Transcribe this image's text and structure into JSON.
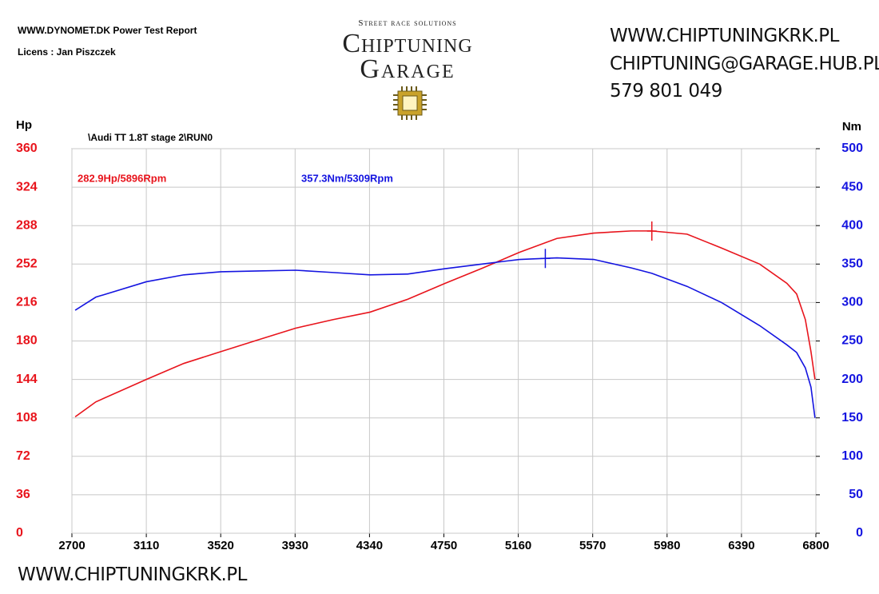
{
  "header": {
    "report": "WWW.DYNOMET.DK  Power Test Report",
    "licence": "Licens :  Jan Piszczek",
    "logo": {
      "tagline": "Street race solutions",
      "line1": "Chiptuning",
      "line2": "Garage"
    },
    "contact": [
      "WWW.CHIPTUNINGKRK.PL",
      "CHIPTUNING@GARAGE.HUB.PL",
      "579 801 049"
    ]
  },
  "footer": "WWW.CHIPTUNINGKRK.PL",
  "chart_data": {
    "type": "line",
    "title": "\\Audi TT 1.8T stage 2\\RUN0",
    "ylabel": "Hp",
    "y2label": "Nm",
    "x": [
      2718,
      2832,
      3110,
      3317,
      3520,
      3726,
      3933,
      4140,
      4343,
      4550,
      4757,
      4960,
      5166,
      5373,
      5576,
      5783,
      5896,
      6090,
      6280,
      6490,
      6640,
      6694,
      6742,
      6773,
      6795
    ],
    "series": [
      {
        "color": "#e8141c",
        "axis": "y",
        "values": [
          109,
          123,
          144,
          159,
          170,
          181,
          192,
          200,
          207,
          219,
          234,
          248,
          263,
          276,
          281,
          283,
          283,
          280,
          267,
          252,
          234,
          224,
          200,
          170,
          144
        ]
      },
      {
        "color": "#1414e0",
        "axis": "y2",
        "values": [
          290,
          307,
          327,
          336,
          340,
          341,
          342,
          339,
          336,
          337,
          344,
          350,
          356,
          358,
          356,
          345,
          338,
          321,
          300,
          270,
          245,
          235,
          215,
          190,
          150
        ]
      }
    ],
    "peaks": [
      {
        "x": 5896,
        "y": 282.9,
        "axis": "y",
        "color": "#e8141c",
        "label": "282.9Hp/5896Rpm"
      },
      {
        "x": 5309,
        "y": 357.3,
        "axis": "y2",
        "color": "#1414e0",
        "label": "357.3Nm/5309Rpm"
      }
    ],
    "xlim": [
      2700,
      6800
    ],
    "xticks": [
      2700,
      3110,
      3520,
      3930,
      4340,
      4750,
      5160,
      5570,
      5980,
      6390,
      6800
    ],
    "ylim": [
      0,
      360
    ],
    "yticks": [
      0,
      36,
      72,
      108,
      144,
      180,
      216,
      252,
      288,
      324,
      360
    ],
    "y2lim": [
      0,
      500
    ],
    "y2ticks": [
      0,
      50,
      100,
      150,
      200,
      250,
      300,
      350,
      400,
      450,
      500
    ],
    "ycolor": "#e8141c",
    "y2color": "#1414e0",
    "grid": true
  }
}
